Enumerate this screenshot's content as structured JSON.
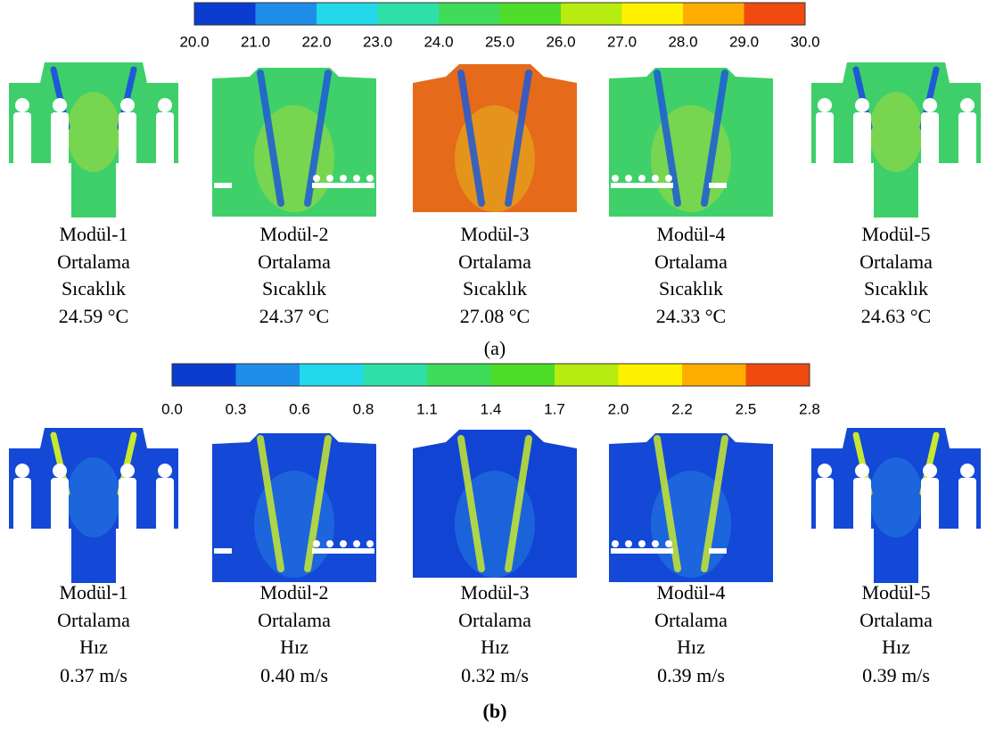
{
  "panels": [
    {
      "label": "(a)",
      "colorbar": {
        "ticks": [
          "20.0",
          "21.0",
          "22.0",
          "23.0",
          "24.0",
          "25.0",
          "26.0",
          "27.0",
          "28.0",
          "29.0",
          "30.0"
        ],
        "colors": [
          "#0a3ccf",
          "#1e8ee8",
          "#22d8ea",
          "#2ee0a8",
          "#3fdc5a",
          "#4ede2a",
          "#b8ec10",
          "#fff200",
          "#ffae00",
          "#f04a10"
        ]
      },
      "modules": [
        {
          "name": "Modül-1",
          "lines": [
            "Ortalama",
            "Sıcaklık"
          ],
          "value": "24.59 °C"
        },
        {
          "name": "Modül-2",
          "lines": [
            "Ortalama",
            "Sıcaklık"
          ],
          "value": "24.37 °C"
        },
        {
          "name": "Modül-3",
          "lines": [
            "Ortalama",
            "Sıcaklık"
          ],
          "value": "27.08 °C"
        },
        {
          "name": "Modül-4",
          "lines": [
            "Ortalama",
            "Sıcaklık"
          ],
          "value": "24.33 °C"
        },
        {
          "name": "Modül-5",
          "lines": [
            "Ortalama",
            "Sıcaklık"
          ],
          "value": "24.63 °C"
        }
      ]
    },
    {
      "label": "(b)",
      "colorbar": {
        "ticks": [
          "0.0",
          "0.3",
          "0.6",
          "0.8",
          "1.1",
          "1.4",
          "1.7",
          "2.0",
          "2.2",
          "2.5",
          "2.8"
        ],
        "colors": [
          "#0a3ccf",
          "#1e8ee8",
          "#22d8ea",
          "#2ee0a8",
          "#3fdc5a",
          "#4ede2a",
          "#b8ec10",
          "#fff200",
          "#ffae00",
          "#f04a10"
        ]
      },
      "modules": [
        {
          "name": "Modül-1",
          "lines": [
            "Ortalama",
            "Hız"
          ],
          "value": "0.37 m/s"
        },
        {
          "name": "Modül-2",
          "lines": [
            "Ortalama",
            "Hız"
          ],
          "value": "0.40 m/s"
        },
        {
          "name": "Modül-3",
          "lines": [
            "Ortalama",
            "Hız"
          ],
          "value": "0.32 m/s"
        },
        {
          "name": "Modül-4",
          "lines": [
            "Ortalama",
            "Hız"
          ],
          "value": "0.39 m/s"
        },
        {
          "name": "Modül-5",
          "lines": [
            "Ortalama",
            "Hız"
          ],
          "value": "0.39 m/s"
        }
      ]
    }
  ]
}
